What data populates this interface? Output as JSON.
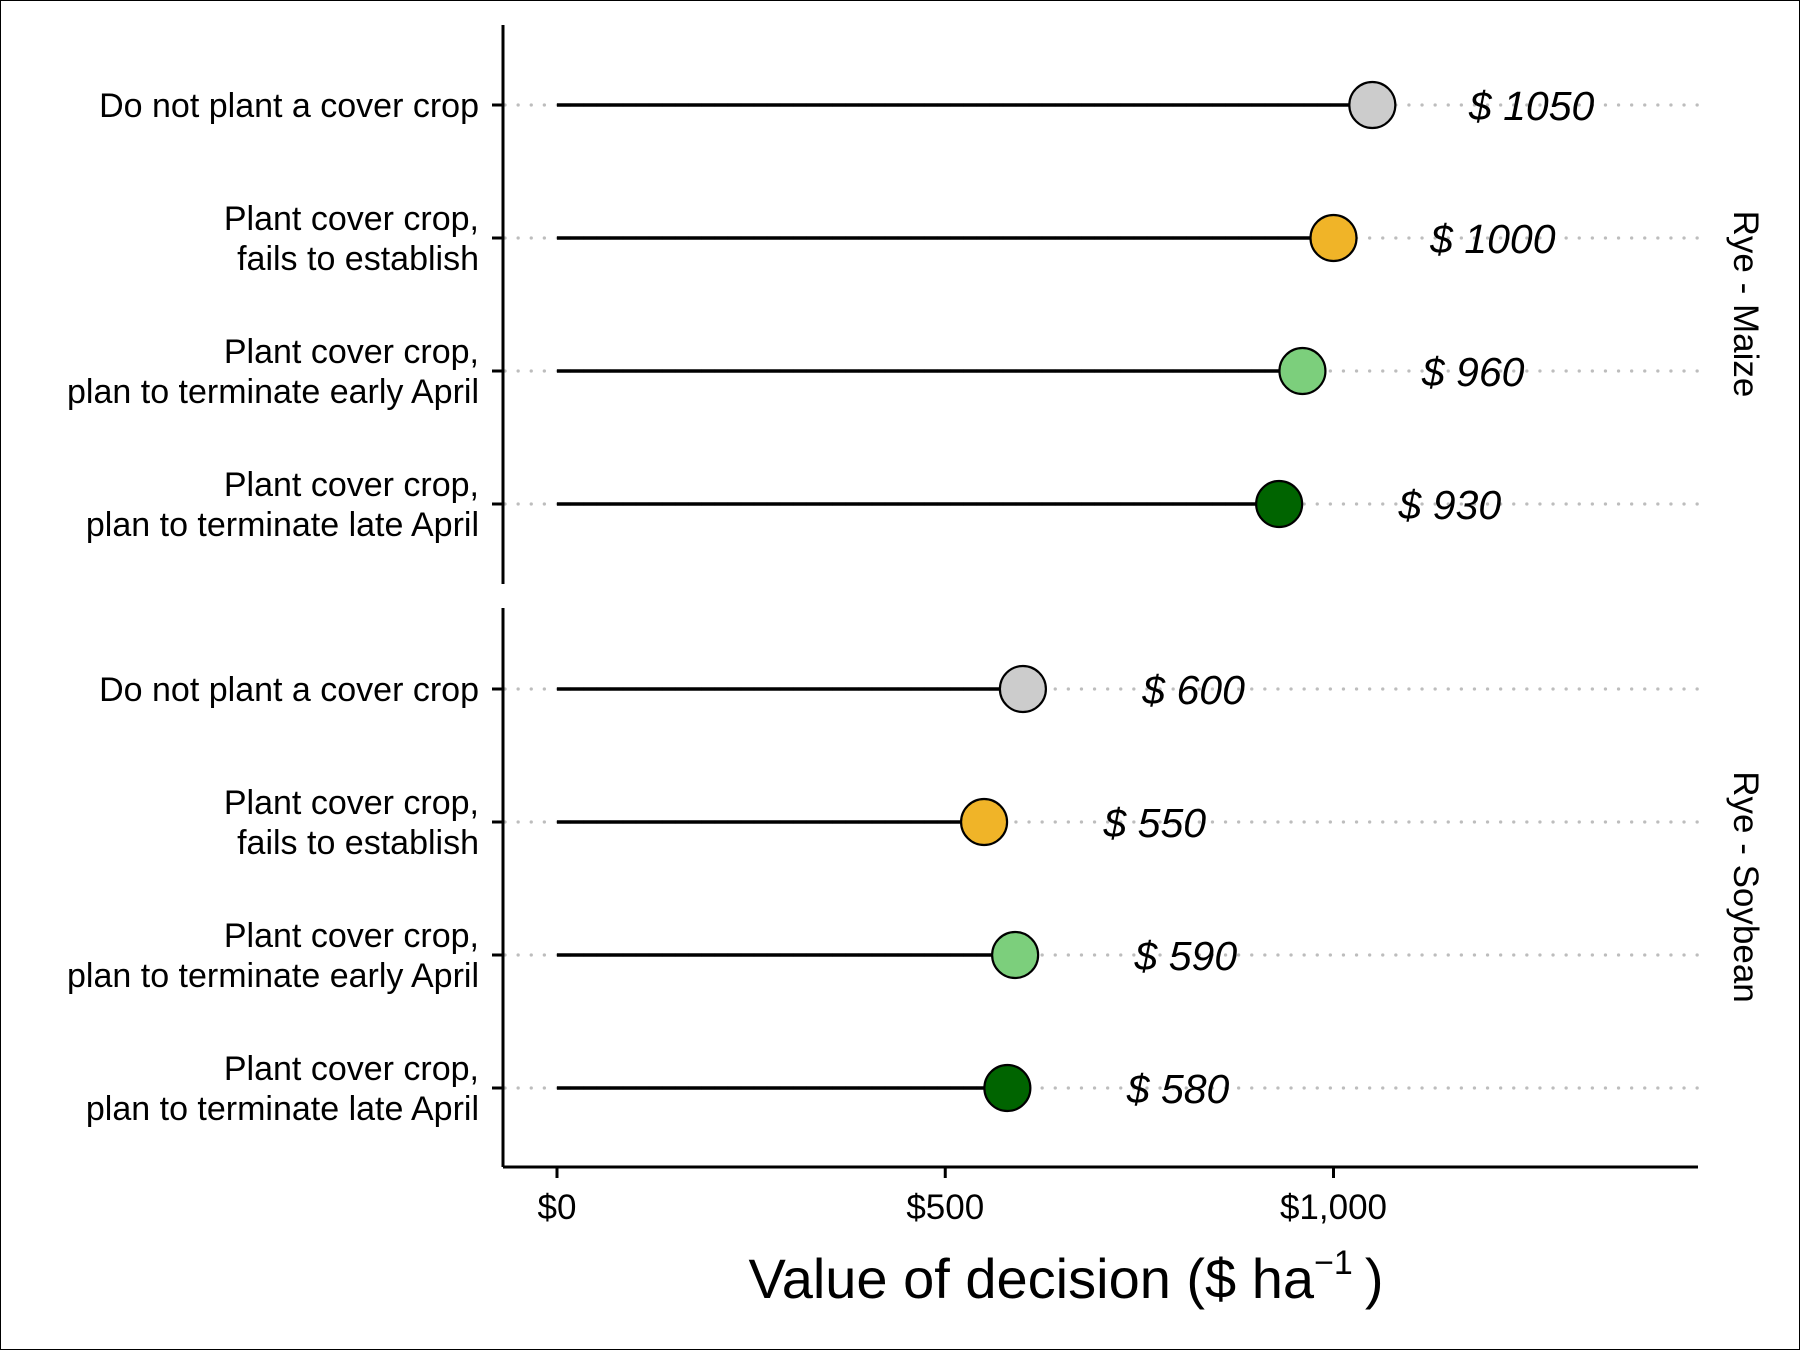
{
  "chart_data": {
    "type": "dot",
    "xlabel": "Value of decision ($  ha",
    "xlabel_sup": "−1",
    "xlabel_close": ")",
    "xlim": [
      -70,
      1470
    ],
    "x_ticks": [
      0,
      500,
      1000
    ],
    "x_tick_labels": [
      "$0",
      "$500",
      "$1,000"
    ],
    "grid": "dotted horizontal guides",
    "categories": [
      [
        "Do not plant a cover crop"
      ],
      [
        "Plant cover crop,",
        "fails to establish"
      ],
      [
        "Plant cover crop,",
        "plan to terminate early April"
      ],
      [
        "Plant cover crop,",
        "plan to terminate late April"
      ]
    ],
    "colors": [
      "#cccccc",
      "#f0b428",
      "#7ccf7c",
      "#006400"
    ],
    "panels": [
      {
        "strip": "Rye - Maize",
        "values": [
          1050,
          1000,
          960,
          930
        ],
        "labels": [
          "$ 1050",
          "$ 1000",
          "$ 960",
          "$ 930"
        ]
      },
      {
        "strip": "Rye - Soybean",
        "values": [
          600,
          550,
          590,
          580
        ],
        "labels": [
          "$ 600",
          "$ 550",
          "$ 590",
          "$ 580"
        ]
      }
    ]
  }
}
